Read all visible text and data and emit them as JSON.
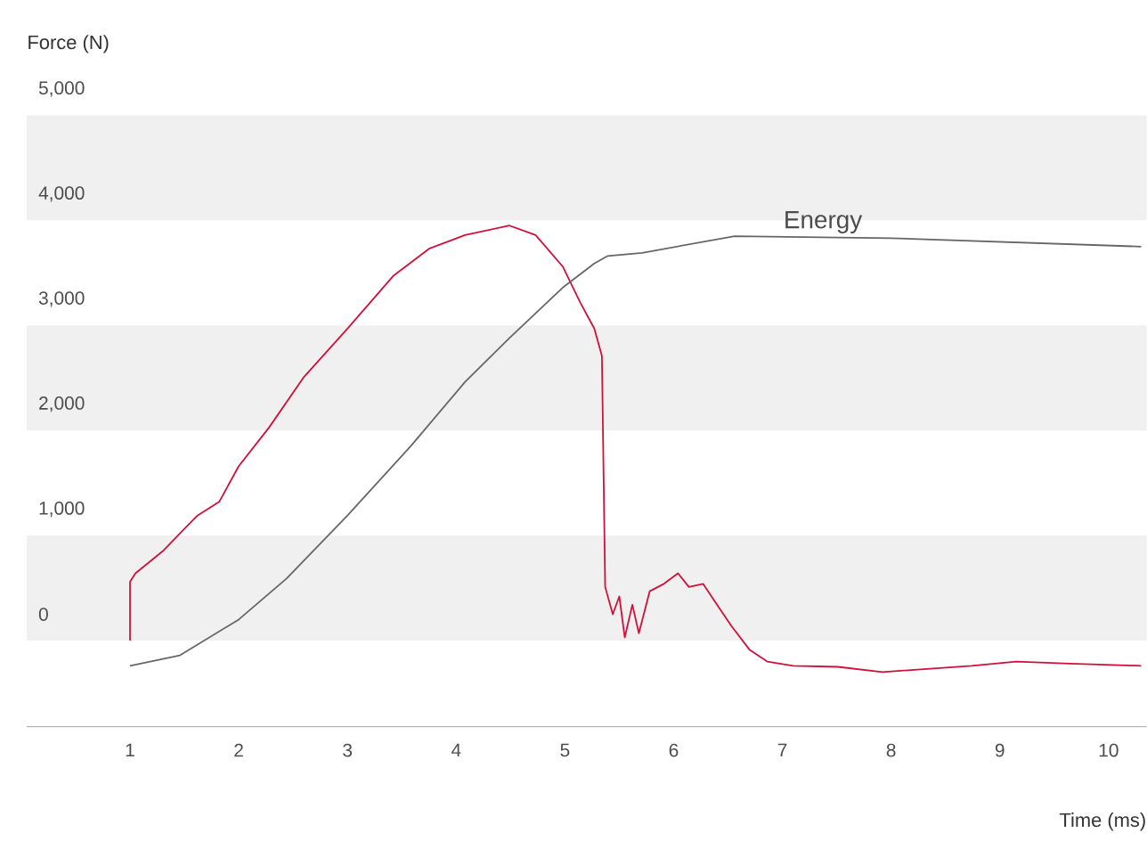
{
  "chart_data": {
    "type": "line",
    "ylabel": "Force (N)",
    "xlabel": "Time (ms)",
    "xlim": [
      0.05,
      10.35
    ],
    "ylim": [
      -1070,
      5000
    ],
    "xticks": [
      1,
      2,
      3,
      4,
      5,
      6,
      7,
      8,
      9,
      10
    ],
    "yticks": [
      0,
      {
        "value": 1000,
        "label": "1,000"
      },
      {
        "value": 2000,
        "label": "2,000"
      },
      {
        "value": 3000,
        "label": "3,000"
      },
      {
        "value": 4000,
        "label": "4,000"
      },
      {
        "value": 5000,
        "label": "5,000"
      }
    ],
    "bands": [
      {
        "axis": "y",
        "from": -250,
        "to": 750,
        "color": "#f0f0f0"
      },
      {
        "axis": "y",
        "from": 1750,
        "to": 2750,
        "color": "#f0f0f0"
      },
      {
        "axis": "y",
        "from": 3750,
        "to": 4750,
        "color": "#f0f0f0"
      }
    ],
    "series": [
      {
        "color": "#d0103a",
        "x": [
          1.0,
          1.0,
          1.05,
          1.3,
          1.46,
          1.62,
          1.82,
          2.0,
          2.28,
          2.6,
          3.0,
          3.42,
          3.75,
          4.08,
          4.49,
          4.73,
          4.98,
          5.14,
          5.27,
          5.34,
          5.37,
          5.44,
          5.5,
          5.55,
          5.62,
          5.68,
          5.78,
          5.91,
          6.04,
          6.14,
          6.27,
          6.4,
          6.53,
          6.7,
          6.86,
          7.1,
          7.51,
          7.92,
          8.33,
          8.74,
          9.15,
          9.64,
          10.3
        ],
        "values": [
          -250,
          310,
          390,
          600,
          770,
          940,
          1070,
          1410,
          1780,
          2260,
          2720,
          3220,
          3480,
          3610,
          3700,
          3610,
          3310,
          2970,
          2720,
          2460,
          260,
          0,
          170,
          -220,
          90,
          -180,
          220,
          290,
          390,
          260,
          290,
          90,
          -110,
          -340,
          -450,
          -490,
          -500,
          -550,
          -520,
          -490,
          -450,
          -470,
          -490
        ]
      },
      {
        "name": "Energy",
        "color": "#666666",
        "x": [
          1.0,
          1.46,
          2.0,
          2.44,
          3.0,
          3.59,
          4.08,
          4.49,
          4.98,
          5.27,
          5.39,
          5.71,
          6.56,
          8.0,
          10.3
        ],
        "values": [
          -490,
          -390,
          -50,
          340,
          940,
          1610,
          2210,
          2630,
          3110,
          3340,
          3410,
          3440,
          3600,
          3580,
          3500
        ]
      }
    ]
  }
}
